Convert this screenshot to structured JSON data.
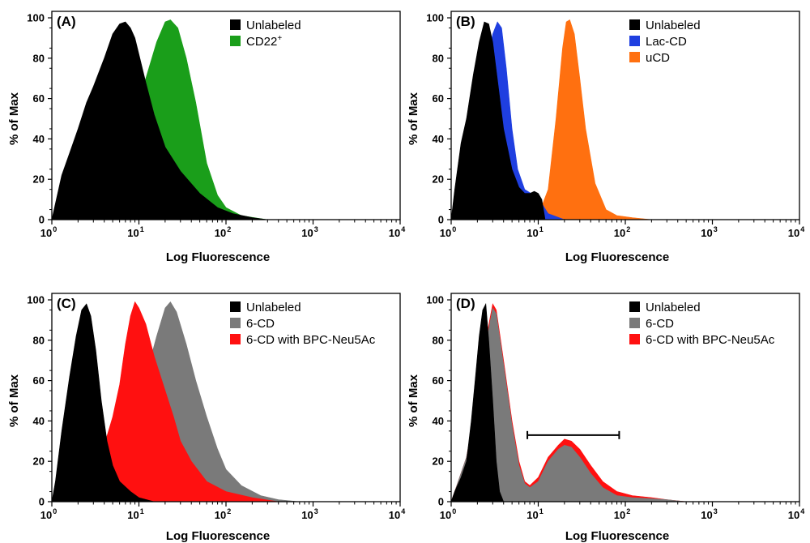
{
  "chart_data": [
    {
      "panel": "(A)",
      "type": "area",
      "xlabel": "Log Fluorescence",
      "ylabel": "% of Max",
      "xscale": "log",
      "xlim": [
        1,
        10000
      ],
      "ylim": [
        0,
        100
      ],
      "xticks": [
        "10",
        "10",
        "10",
        "10",
        "10"
      ],
      "xtick_exp": [
        "0",
        "1",
        "2",
        "3",
        "4"
      ],
      "yticks": [
        "0",
        "20",
        "40",
        "60",
        "80",
        "100"
      ],
      "legend_position": "top-right",
      "legend": [
        {
          "label": "Unlabeled",
          "sup": "",
          "color": "#000000"
        },
        {
          "label": "CD22",
          "sup": "+",
          "color": "#1a9e1a"
        }
      ],
      "series": [
        {
          "name": "CD22+",
          "color": "#1a9e1a",
          "peak_x": 23,
          "width": 0.23,
          "points": [
            [
              1.0,
              0
            ],
            [
              1.3,
              0
            ],
            [
              2,
              0
            ],
            [
              3,
              0
            ],
            [
              5,
              2
            ],
            [
              8,
              25
            ],
            [
              12,
              70
            ],
            [
              16,
              88
            ],
            [
              20,
              98
            ],
            [
              23,
              99
            ],
            [
              28,
              95
            ],
            [
              35,
              80
            ],
            [
              45,
              58
            ],
            [
              60,
              28
            ],
            [
              80,
              12
            ],
            [
              100,
              6
            ],
            [
              150,
              2
            ],
            [
              250,
              0.5
            ],
            [
              300,
              0
            ]
          ]
        },
        {
          "name": "Unlabeled",
          "color": "#000000",
          "points": [
            [
              1.0,
              0
            ],
            [
              1.1,
              8
            ],
            [
              1.3,
              22
            ],
            [
              1.6,
              33
            ],
            [
              2,
              45
            ],
            [
              2.5,
              58
            ],
            [
              3,
              66
            ],
            [
              4,
              80
            ],
            [
              5,
              92
            ],
            [
              6,
              97
            ],
            [
              7,
              98
            ],
            [
              8,
              95
            ],
            [
              9,
              90
            ],
            [
              10,
              82
            ],
            [
              12,
              68
            ],
            [
              15,
              52
            ],
            [
              20,
              36
            ],
            [
              30,
              24
            ],
            [
              50,
              13
            ],
            [
              80,
              6
            ],
            [
              120,
              3
            ],
            [
              200,
              1
            ],
            [
              300,
              0
            ]
          ]
        }
      ]
    },
    {
      "panel": "(B)",
      "type": "area",
      "xlabel": "Log Fluorescence",
      "ylabel": "% of Max",
      "xscale": "log",
      "xlim": [
        1,
        10000
      ],
      "ylim": [
        0,
        100
      ],
      "xticks": [
        "10",
        "10",
        "10",
        "10",
        "10"
      ],
      "xtick_exp": [
        "0",
        "1",
        "2",
        "3",
        "4"
      ],
      "yticks": [
        "0",
        "20",
        "40",
        "60",
        "80",
        "100"
      ],
      "legend_position": "top-right",
      "legend": [
        {
          "label": "Unlabeled",
          "sup": "",
          "color": "#000000"
        },
        {
          "label": "Lac-CD",
          "sup": "",
          "color": "#1f3fe0"
        },
        {
          "label": "uCD",
          "sup": "",
          "color": "#ff7010"
        }
      ],
      "series": [
        {
          "name": "uCD",
          "color": "#ff7010",
          "points": [
            [
              1.0,
              0
            ],
            [
              5,
              0.5
            ],
            [
              10,
              2
            ],
            [
              13,
              15
            ],
            [
              16,
              50
            ],
            [
              19,
              85
            ],
            [
              21,
              98
            ],
            [
              23,
              99
            ],
            [
              26,
              92
            ],
            [
              30,
              70
            ],
            [
              35,
              45
            ],
            [
              45,
              18
            ],
            [
              60,
              5
            ],
            [
              80,
              2
            ],
            [
              120,
              1
            ],
            [
              200,
              0
            ]
          ]
        },
        {
          "name": "Lac-CD",
          "color": "#1f3fe0",
          "points": [
            [
              1.0,
              0
            ],
            [
              1.1,
              3
            ],
            [
              1.5,
              25
            ],
            [
              2,
              50
            ],
            [
              2.5,
              75
            ],
            [
              3,
              92
            ],
            [
              3.4,
              98
            ],
            [
              3.8,
              95
            ],
            [
              4.3,
              75
            ],
            [
              5,
              45
            ],
            [
              5.8,
              25
            ],
            [
              7,
              15
            ],
            [
              9,
              12
            ],
            [
              11,
              8
            ],
            [
              13,
              3
            ],
            [
              20,
              0
            ]
          ]
        },
        {
          "name": "Unlabeled",
          "color": "#000000",
          "points": [
            [
              1.0,
              0
            ],
            [
              1.1,
              15
            ],
            [
              1.3,
              38
            ],
            [
              1.5,
              50
            ],
            [
              1.8,
              72
            ],
            [
              2.1,
              88
            ],
            [
              2.4,
              98
            ],
            [
              2.7,
              97
            ],
            [
              3,
              88
            ],
            [
              3.5,
              65
            ],
            [
              4,
              45
            ],
            [
              5,
              25
            ],
            [
              6,
              16
            ],
            [
              7,
              13
            ],
            [
              8,
              13
            ],
            [
              9,
              14
            ],
            [
              10,
              13
            ],
            [
              11,
              10
            ],
            [
              12,
              0
            ]
          ]
        }
      ]
    },
    {
      "panel": "(C)",
      "type": "area",
      "xlabel": "Log Fluorescence",
      "ylabel": "% of Max",
      "xscale": "log",
      "xlim": [
        1,
        10000
      ],
      "ylim": [
        0,
        100
      ],
      "xticks": [
        "10",
        "10",
        "10",
        "10",
        "10"
      ],
      "xtick_exp": [
        "0",
        "1",
        "2",
        "3",
        "4"
      ],
      "yticks": [
        "0",
        "20",
        "40",
        "60",
        "80",
        "100"
      ],
      "legend_position": "top-right",
      "legend": [
        {
          "label": "Unlabeled",
          "sup": "",
          "color": "#000000"
        },
        {
          "label": "6-CD",
          "sup": "",
          "color": "#7a7a7a"
        },
        {
          "label": "6-CD with BPC-Neu5Ac",
          "sup": "",
          "color": "#ff1010"
        }
      ],
      "series": [
        {
          "name": "6-CD",
          "color": "#7a7a7a",
          "points": [
            [
              1.0,
              0
            ],
            [
              2,
              0
            ],
            [
              3,
              1
            ],
            [
              5,
              8
            ],
            [
              8,
              30
            ],
            [
              12,
              62
            ],
            [
              16,
              82
            ],
            [
              20,
              96
            ],
            [
              23,
              99
            ],
            [
              27,
              94
            ],
            [
              35,
              78
            ],
            [
              45,
              60
            ],
            [
              60,
              42
            ],
            [
              80,
              26
            ],
            [
              100,
              16
            ],
            [
              150,
              8
            ],
            [
              250,
              3
            ],
            [
              400,
              1
            ],
            [
              700,
              0
            ]
          ]
        },
        {
          "name": "6-CD with BPC-Neu5Ac",
          "color": "#ff1010",
          "points": [
            [
              1.0,
              0
            ],
            [
              1.5,
              2
            ],
            [
              2,
              5
            ],
            [
              3,
              15
            ],
            [
              4,
              28
            ],
            [
              5,
              42
            ],
            [
              6,
              58
            ],
            [
              7,
              78
            ],
            [
              8,
              92
            ],
            [
              9,
              99
            ],
            [
              10,
              96
            ],
            [
              12,
              88
            ],
            [
              15,
              72
            ],
            [
              20,
              55
            ],
            [
              25,
              42
            ],
            [
              30,
              30
            ],
            [
              40,
              20
            ],
            [
              60,
              10
            ],
            [
              100,
              5
            ],
            [
              200,
              2
            ],
            [
              400,
              0
            ]
          ]
        },
        {
          "name": "Unlabeled",
          "color": "#000000",
          "points": [
            [
              1.0,
              0
            ],
            [
              1.1,
              10
            ],
            [
              1.3,
              35
            ],
            [
              1.6,
              62
            ],
            [
              1.9,
              82
            ],
            [
              2.2,
              95
            ],
            [
              2.5,
              98
            ],
            [
              2.8,
              92
            ],
            [
              3.2,
              75
            ],
            [
              3.7,
              50
            ],
            [
              4.3,
              30
            ],
            [
              5,
              18
            ],
            [
              6,
              10
            ],
            [
              8,
              5
            ],
            [
              10,
              2
            ],
            [
              15,
              0
            ]
          ]
        }
      ]
    },
    {
      "panel": "(D)",
      "type": "area",
      "xlabel": "Log Fluorescence",
      "ylabel": "% of Max",
      "xscale": "log",
      "xlim": [
        1,
        10000
      ],
      "ylim": [
        0,
        100
      ],
      "xticks": [
        "10",
        "10",
        "10",
        "10",
        "10"
      ],
      "xtick_exp": [
        "0",
        "1",
        "2",
        "3",
        "4"
      ],
      "yticks": [
        "0",
        "20",
        "40",
        "60",
        "80",
        "100"
      ],
      "legend_position": "top-right",
      "legend": [
        {
          "label": "Unlabeled",
          "sup": "",
          "color": "#000000"
        },
        {
          "label": "6-CD",
          "sup": "",
          "color": "#7a7a7a"
        },
        {
          "label": "6-CD with BPC-Neu5Ac",
          "sup": "",
          "color": "#ff1010"
        }
      ],
      "gate": {
        "x_start": 7.5,
        "x_end": 85,
        "y": 33
      },
      "series": [
        {
          "name": "6-CD with BPC-Neu5Ac",
          "color": "#ff1010",
          "points": [
            [
              1.0,
              0
            ],
            [
              1.1,
              5
            ],
            [
              1.5,
              22
            ],
            [
              2,
              52
            ],
            [
              2.5,
              80
            ],
            [
              3,
              98
            ],
            [
              3.3,
              95
            ],
            [
              4,
              70
            ],
            [
              5,
              40
            ],
            [
              6,
              20
            ],
            [
              7,
              10
            ],
            [
              8,
              8
            ],
            [
              10,
              12
            ],
            [
              13,
              22
            ],
            [
              17,
              28
            ],
            [
              20,
              31
            ],
            [
              24,
              30
            ],
            [
              30,
              26
            ],
            [
              40,
              18
            ],
            [
              55,
              10
            ],
            [
              80,
              5
            ],
            [
              120,
              3
            ],
            [
              200,
              2
            ],
            [
              300,
              1
            ],
            [
              500,
              0
            ]
          ]
        },
        {
          "name": "6-CD",
          "color": "#7a7a7a",
          "points": [
            [
              1.0,
              0
            ],
            [
              1.1,
              5
            ],
            [
              1.5,
              22
            ],
            [
              2,
              50
            ],
            [
              2.5,
              78
            ],
            [
              3,
              96
            ],
            [
              3.3,
              93
            ],
            [
              4,
              68
            ],
            [
              5,
              38
            ],
            [
              6,
              18
            ],
            [
              7,
              9
            ],
            [
              8,
              7
            ],
            [
              10,
              10
            ],
            [
              13,
              20
            ],
            [
              17,
              26
            ],
            [
              20,
              28
            ],
            [
              24,
              27
            ],
            [
              30,
              22
            ],
            [
              40,
              14
            ],
            [
              55,
              7
            ],
            [
              80,
              3
            ],
            [
              120,
              2
            ],
            [
              200,
              1.5
            ],
            [
              300,
              1
            ],
            [
              500,
              0
            ]
          ]
        },
        {
          "name": "Unlabeled",
          "color": "#000000",
          "points": [
            [
              1.0,
              0
            ],
            [
              1.1,
              5
            ],
            [
              1.3,
              12
            ],
            [
              1.5,
              20
            ],
            [
              1.7,
              40
            ],
            [
              1.9,
              62
            ],
            [
              2.1,
              82
            ],
            [
              2.3,
              95
            ],
            [
              2.5,
              98
            ],
            [
              2.7,
              80
            ],
            [
              3,
              50
            ],
            [
              3.3,
              20
            ],
            [
              3.6,
              5
            ],
            [
              4,
              0
            ]
          ]
        }
      ]
    }
  ]
}
